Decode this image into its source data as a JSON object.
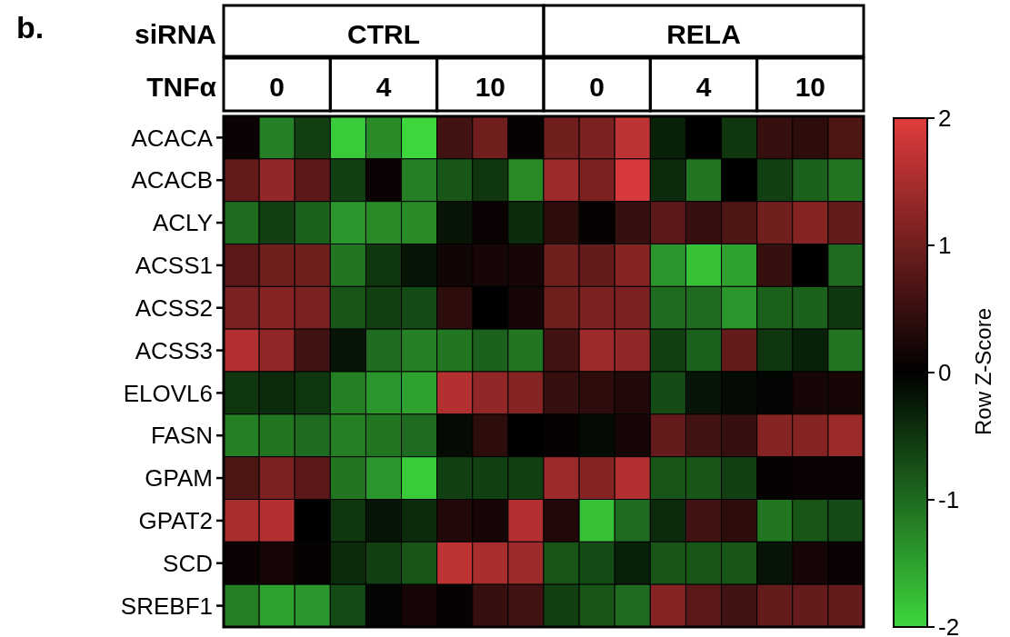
{
  "chart_data": {
    "type": "heatmap",
    "title": "b.",
    "clabel": "Row Z-Score",
    "annotations": [
      "siRNA",
      "CTRL",
      "RELA",
      "TNFα",
      "0",
      "4",
      "10",
      "0",
      "4",
      "10"
    ],
    "categories": [
      null,
      null,
      null,
      null,
      null,
      null,
      null,
      null,
      null,
      null,
      null,
      null,
      null,
      null,
      null,
      null,
      null,
      null
    ],
    "y_categories": [
      "ACACA",
      "ACACB",
      "ACLY",
      "ACSS1",
      "ACSS2",
      "ACSS3",
      "ELOVL6",
      "FASN",
      "GPAM",
      "GPAT2",
      "SCD",
      "SREBF1"
    ],
    "cells": [
      [
        0.1,
        -1.2,
        -0.6,
        -1.9,
        -1.3,
        -2.0,
        0.6,
        1.0,
        0.05,
        1.0,
        1.1,
        1.7,
        -0.3,
        0,
        -0.5,
        0.5,
        0.4,
        0.7
      ],
      [
        0.9,
        1.3,
        0.8,
        -0.6,
        0.1,
        -1.2,
        -0.8,
        -0.5,
        -1.3,
        1.4,
        1.1,
        1.9,
        -0.4,
        -1.1,
        0,
        -0.6,
        -0.9,
        -1.1
      ],
      [
        -1.0,
        -0.6,
        -0.9,
        -1.4,
        -1.3,
        -1.3,
        -0.2,
        0.1,
        -0.4,
        0.4,
        0.05,
        0.5,
        0.8,
        0.5,
        0.7,
        1.0,
        1.2,
        0.9
      ],
      [
        0.8,
        1.0,
        1.0,
        -1.1,
        -0.5,
        -0.2,
        0.15,
        0.2,
        0.2,
        1.0,
        0.9,
        1.2,
        -1.4,
        -1.8,
        -1.5,
        0.5,
        0,
        -1.0
      ],
      [
        1.1,
        1.2,
        1.1,
        -0.8,
        -0.6,
        -0.7,
        0.4,
        0,
        0.2,
        1.0,
        1.1,
        1.1,
        -1.0,
        -1.0,
        -1.4,
        -0.9,
        -0.9,
        -0.5
      ],
      [
        1.6,
        1.3,
        0.6,
        -0.2,
        -1.0,
        -1.2,
        -1.1,
        -0.9,
        -1.1,
        0.6,
        1.4,
        1.3,
        -0.6,
        -0.9,
        0.9,
        -0.5,
        -0.3,
        -1.1
      ],
      [
        -0.5,
        -0.4,
        -0.5,
        -1.2,
        -1.4,
        -1.5,
        1.6,
        1.3,
        1.2,
        0.5,
        0.4,
        0.3,
        -0.7,
        -0.2,
        -0.1,
        -0.05,
        0.2,
        0.2
      ],
      [
        -1.2,
        -1.1,
        -1.0,
        -1.2,
        -1.1,
        -1.0,
        -0.1,
        0.4,
        0,
        0.05,
        -0.1,
        0.2,
        0.9,
        0.6,
        0.5,
        1.2,
        1.2,
        1.4
      ],
      [
        0.7,
        1.1,
        0.8,
        -1.1,
        -1.4,
        -1.9,
        -0.6,
        -0.6,
        -0.6,
        1.4,
        1.2,
        1.6,
        -0.8,
        -0.8,
        -0.6,
        0.05,
        0.1,
        0.1
      ],
      [
        1.5,
        1.6,
        0.0,
        -0.5,
        -0.2,
        -0.4,
        0.3,
        0.2,
        1.6,
        0.3,
        -1.8,
        -1.0,
        -0.4,
        0.6,
        0.4,
        -1.1,
        -0.8,
        -0.7
      ],
      [
        0.1,
        0.2,
        0.05,
        -0.4,
        -0.6,
        -0.8,
        1.7,
        1.5,
        1.4,
        -0.8,
        -0.7,
        -0.3,
        -0.8,
        -0.8,
        -0.8,
        -0.2,
        0.2,
        0.1
      ],
      [
        -1.2,
        -1.5,
        -1.4,
        -0.7,
        -0.05,
        0.2,
        0.05,
        0.5,
        0.6,
        -0.6,
        -0.8,
        -1.0,
        1.2,
        0.8,
        0.6,
        0.9,
        0.9,
        0.9
      ]
    ],
    "clim": [
      -2,
      2
    ],
    "cticks": [
      -2,
      -1,
      0,
      1,
      2
    ]
  }
}
